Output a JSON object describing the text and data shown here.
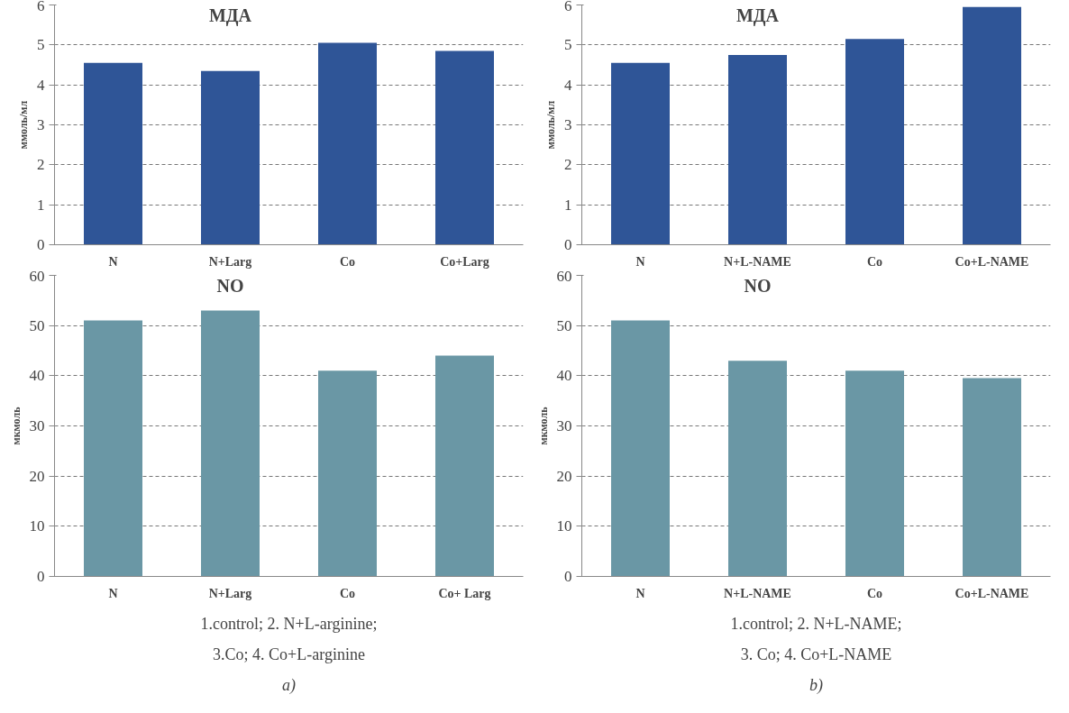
{
  "chart_data": [
    {
      "type": "bar",
      "title": "МДА",
      "ylabel": "ммоль/мл",
      "categories": [
        "N",
        "N+Larg",
        "Co",
        "Co+Larg"
      ],
      "values": [
        4.55,
        4.35,
        5.05,
        4.85
      ],
      "color": "#2f5597",
      "ylim": [
        0,
        6
      ],
      "yticks": [
        0,
        1,
        2,
        3,
        4,
        5,
        6
      ],
      "grid": "y"
    },
    {
      "type": "bar",
      "title": "МДА",
      "ylabel": "ммоль/мл",
      "categories": [
        "N",
        "N+L-NAME",
        "Co",
        "Co+L-NAME"
      ],
      "values": [
        4.55,
        4.75,
        5.15,
        5.95
      ],
      "color": "#2f5597",
      "ylim": [
        0,
        6
      ],
      "yticks": [
        0,
        1,
        2,
        3,
        4,
        5,
        6
      ],
      "grid": "y"
    },
    {
      "type": "bar",
      "title": "NO",
      "ylabel": "мкмоль",
      "categories": [
        "N",
        "N+Larg",
        "Co",
        "Co+ Larg"
      ],
      "values": [
        51,
        53,
        41,
        44
      ],
      "color": "#6a97a5",
      "ylim": [
        0,
        60
      ],
      "yticks": [
        0,
        10,
        20,
        30,
        40,
        50,
        60
      ],
      "grid": "y",
      "annotations": [
        "1.control; 2. N+L-arginine;",
        "3.Co; 4. Co+L-arginine",
        "a)"
      ]
    },
    {
      "type": "bar",
      "title": "NO",
      "ylabel": "мкмоль",
      "categories": [
        "N",
        "N+L-NAME",
        "Co",
        "Co+L-NAME"
      ],
      "values": [
        51,
        43,
        41,
        39.5
      ],
      "color": "#6a97a5",
      "ylim": [
        0,
        60
      ],
      "yticks": [
        0,
        10,
        20,
        30,
        40,
        50,
        60
      ],
      "grid": "y",
      "annotations": [
        "1.control; 2. N+L-NAME;",
        "3. Co; 4. Co+L-NAME",
        "b)"
      ]
    }
  ]
}
